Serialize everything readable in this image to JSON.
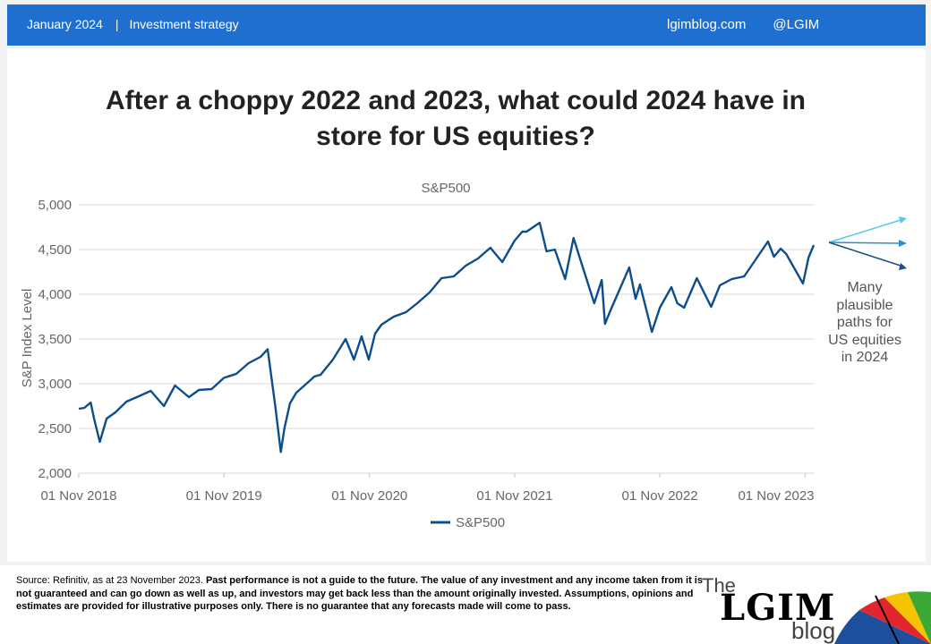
{
  "header": {
    "date": "January 2024",
    "separator": "|",
    "section": "Investment strategy",
    "site": "lgimblog.com",
    "handle": "@LGIM"
  },
  "title_line1": "After a choppy 2022 and 2023, what could 2024 have in",
  "title_line2": "store for US equities?",
  "annotation": [
    "Many",
    "plausible",
    "paths for",
    "US equities",
    "in 2024"
  ],
  "footnote": {
    "source": "Source: Refinitiv, as at 23 November 2023. ",
    "disclaimer": "Past performance is not a guide to the future. The value of any investment and any income taken from it is not guaranteed and can go down as well as up, and investors may get back less than the amount originally invested. Assumptions, opinions and estimates are provided for illustrative purposes only. There is no guarantee that any forecasts made will come to pass."
  },
  "logo": {
    "the": "The",
    "lgim": "LGIM",
    "blog": "blog"
  },
  "colors": {
    "header_bg": "#1f6fd1",
    "series": "#0e4d8c",
    "arrow_light": "#5bc8e8",
    "arrow_mid": "#2a8fd0",
    "arrow_dark": "#1d4f8a"
  },
  "chart_data": {
    "type": "line",
    "title": "S&P500",
    "xlabel": "",
    "ylabel": "S&P Index Level",
    "ylim": [
      2000,
      5000
    ],
    "yticks": [
      2000,
      2500,
      3000,
      3500,
      4000,
      4500,
      5000
    ],
    "ytick_labels": [
      "2,000",
      "2,500",
      "3,000",
      "3,500",
      "4,000",
      "4,500",
      "5,000"
    ],
    "xlim": [
      "2018-11-01",
      "2023-11-23"
    ],
    "xticks": [
      "2018-11-01",
      "2019-11-01",
      "2020-11-01",
      "2021-11-01",
      "2022-11-01",
      "2023-11-01"
    ],
    "xtick_labels": [
      "01 Nov 2018",
      "01 Nov 2019",
      "01 Nov 2020",
      "01 Nov 2021",
      "01 Nov 2022",
      "01 Nov 2023"
    ],
    "grid": "horizontal",
    "legend": "bottom",
    "series": [
      {
        "name": "S&P500",
        "x": [
          "2018-11-01",
          "2018-11-15",
          "2018-12-01",
          "2018-12-10",
          "2018-12-24",
          "2019-01-10",
          "2019-02-01",
          "2019-03-01",
          "2019-04-01",
          "2019-05-01",
          "2019-06-03",
          "2019-07-01",
          "2019-08-05",
          "2019-08-30",
          "2019-10-01",
          "2019-11-01",
          "2019-12-02",
          "2020-01-02",
          "2020-02-01",
          "2020-02-19",
          "2020-03-09",
          "2020-03-23",
          "2020-04-01",
          "2020-04-15",
          "2020-05-01",
          "2020-06-08",
          "2020-06-15",
          "2020-07-01",
          "2020-08-01",
          "2020-09-02",
          "2020-09-23",
          "2020-10-12",
          "2020-10-30",
          "2020-11-15",
          "2020-12-01",
          "2021-01-01",
          "2021-02-01",
          "2021-03-01",
          "2021-04-01",
          "2021-05-01",
          "2021-06-01",
          "2021-07-01",
          "2021-08-01",
          "2021-09-01",
          "2021-10-01",
          "2021-11-01",
          "2021-11-20",
          "2021-12-01",
          "2022-01-03",
          "2022-01-20",
          "2022-02-10",
          "2022-03-08",
          "2022-03-29",
          "2022-04-15",
          "2022-05-20",
          "2022-06-08",
          "2022-06-16",
          "2022-07-01",
          "2022-08-16",
          "2022-09-01",
          "2022-09-12",
          "2022-10-12",
          "2022-11-01",
          "2022-11-30",
          "2022-12-15",
          "2023-01-01",
          "2023-02-02",
          "2023-03-10",
          "2023-04-01",
          "2023-05-01",
          "2023-06-01",
          "2023-07-31",
          "2023-08-15",
          "2023-09-01",
          "2023-09-15",
          "2023-10-27",
          "2023-11-10",
          "2023-11-23"
        ],
        "values": [
          2720,
          2730,
          2790,
          2600,
          2350,
          2610,
          2680,
          2800,
          2860,
          2920,
          2750,
          2980,
          2850,
          2930,
          2940,
          3066,
          3110,
          3230,
          3300,
          3386,
          2750,
          2237,
          2500,
          2780,
          2900,
          3050,
          3080,
          3100,
          3270,
          3500,
          3270,
          3530,
          3270,
          3560,
          3660,
          3750,
          3800,
          3900,
          4020,
          4180,
          4200,
          4320,
          4400,
          4520,
          4360,
          4600,
          4700,
          4700,
          4800,
          4480,
          4500,
          4170,
          4630,
          4390,
          3900,
          4160,
          3670,
          3830,
          4300,
          3950,
          4110,
          3580,
          3850,
          4080,
          3900,
          3850,
          4180,
          3860,
          4100,
          4170,
          4200,
          4590,
          4420,
          4510,
          4450,
          4120,
          4410,
          4550
        ]
      }
    ]
  }
}
